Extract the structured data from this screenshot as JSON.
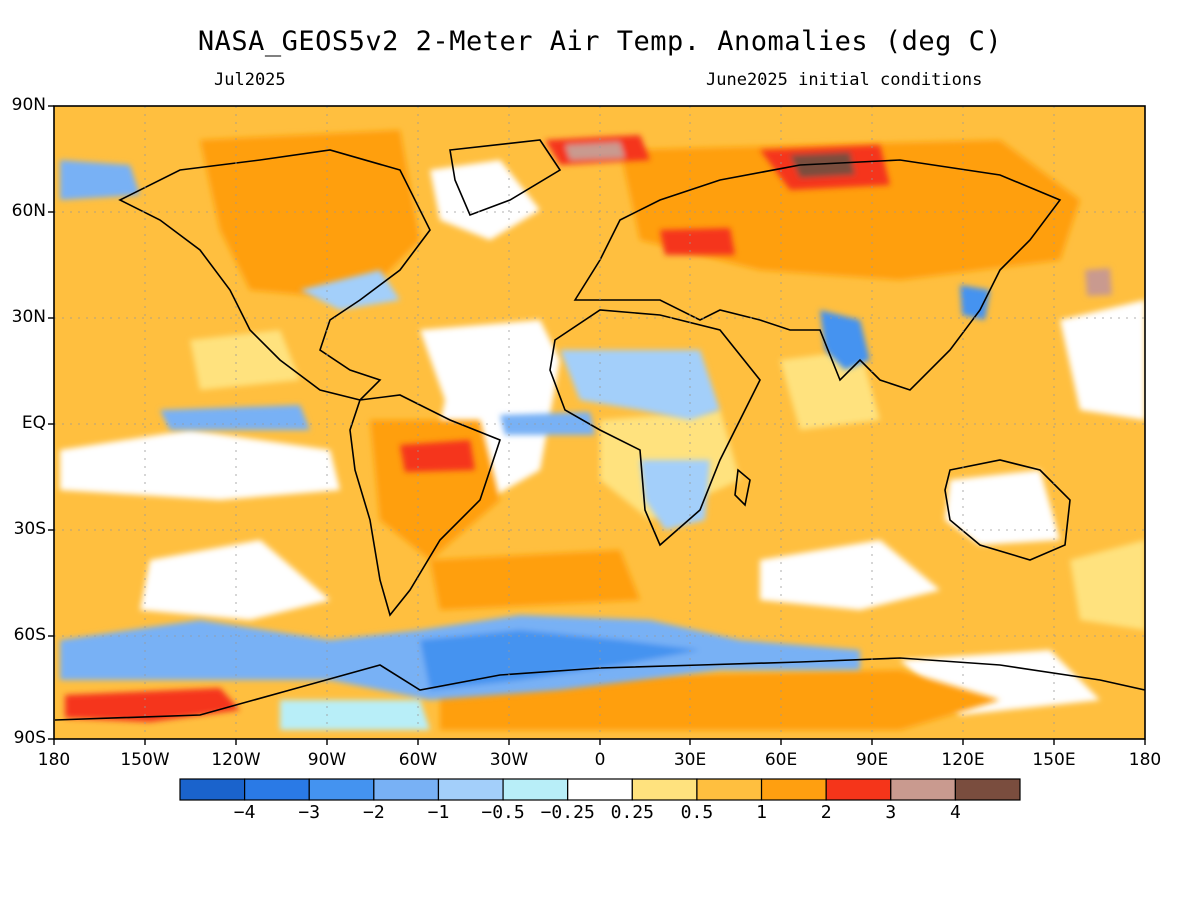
{
  "title": "NASA_GEOS5v2 2-Meter Air Temp. Anomalies (deg C)",
  "valid_month": "Jul2025",
  "init_conditions": "June2025 initial conditions",
  "lat_labels": [
    "90N",
    "60N",
    "30N",
    "EQ",
    "30S",
    "60S",
    "90S"
  ],
  "lon_labels": [
    "180",
    "150W",
    "120W",
    "90W",
    "60W",
    "30W",
    "0",
    "30E",
    "60E",
    "90E",
    "120E",
    "150E",
    "180"
  ],
  "colorbar": {
    "labels": [
      "-4",
      "-3",
      "-2",
      "-1",
      "-0.5",
      "-0.25",
      "0.25",
      "0.5",
      "1",
      "2",
      "3",
      "4"
    ],
    "colors": [
      "#1a63cc",
      "#2a7ae6",
      "#4493f0",
      "#78b1f5",
      "#a3cffa",
      "#b8eef8",
      "#ffffff",
      "#ffe27e",
      "#ffbf3f",
      "#ff9f10",
      "#f5351a",
      "#c99a8f",
      "#7a4d3e"
    ]
  },
  "regions": [
    {
      "name": "southern-ocean-cold",
      "level": "-1"
    },
    {
      "name": "india-cold",
      "level": "-1"
    },
    {
      "name": "central-africa-cold",
      "level": "-0.5"
    },
    {
      "name": "siberia-warm",
      "level": "4"
    },
    {
      "name": "greenland-warm",
      "level": "3"
    },
    {
      "name": "west-antarctica-warm",
      "level": "3"
    }
  ]
}
